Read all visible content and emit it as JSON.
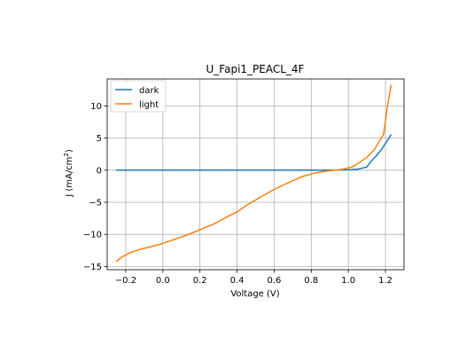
{
  "chart_data": {
    "type": "line",
    "title": "U_Fapi1_PEACL_4F",
    "xlabel": "Voltage (V)",
    "ylabel_main": "J (mA/cm",
    "ylabel_sup": "2",
    "ylabel_close": ")",
    "xlim": [
      -0.3,
      1.3
    ],
    "ylim": [
      -15.5,
      14.2
    ],
    "xticks": [
      -0.2,
      0.0,
      0.2,
      0.4,
      0.6,
      0.8,
      1.0,
      1.2
    ],
    "xtick_labels": [
      "−0.2",
      "0.0",
      "0.2",
      "0.4",
      "0.6",
      "0.8",
      "1.0",
      "1.2"
    ],
    "yticks": [
      -15,
      -10,
      -5,
      0,
      5,
      10
    ],
    "ytick_labels": [
      "−15",
      "−10",
      "−5",
      "0",
      "5",
      "10"
    ],
    "grid": true,
    "legend_position": "top-left",
    "series": [
      {
        "name": "dark",
        "color": "#1f77b4",
        "points": [
          [
            -0.25,
            0.0
          ],
          [
            0.0,
            0.0
          ],
          [
            0.3,
            0.0
          ],
          [
            0.6,
            0.0
          ],
          [
            0.9,
            0.0
          ],
          [
            1.0,
            0.05
          ],
          [
            1.05,
            0.15
          ],
          [
            1.1,
            0.5
          ],
          [
            1.12,
            1.3
          ],
          [
            1.15,
            2.2
          ],
          [
            1.18,
            3.3
          ],
          [
            1.21,
            4.6
          ],
          [
            1.23,
            5.5
          ]
        ]
      },
      {
        "name": "light",
        "color": "#ff7f0e",
        "points": [
          [
            -0.25,
            -14.2
          ],
          [
            -0.22,
            -13.5
          ],
          [
            -0.18,
            -12.9
          ],
          [
            -0.12,
            -12.3
          ],
          [
            -0.05,
            -11.8
          ],
          [
            0.0,
            -11.4
          ],
          [
            0.05,
            -10.9
          ],
          [
            0.12,
            -10.2
          ],
          [
            0.2,
            -9.3
          ],
          [
            0.28,
            -8.3
          ],
          [
            0.35,
            -7.2
          ],
          [
            0.4,
            -6.5
          ],
          [
            0.45,
            -5.5
          ],
          [
            0.52,
            -4.3
          ],
          [
            0.6,
            -3.0
          ],
          [
            0.68,
            -1.9
          ],
          [
            0.75,
            -1.0
          ],
          [
            0.82,
            -0.45
          ],
          [
            0.88,
            -0.15
          ],
          [
            0.93,
            0.0
          ],
          [
            0.97,
            0.15
          ],
          [
            1.02,
            0.5
          ],
          [
            1.06,
            1.2
          ],
          [
            1.1,
            2.0
          ],
          [
            1.14,
            3.2
          ],
          [
            1.17,
            4.6
          ],
          [
            1.19,
            5.6
          ],
          [
            1.21,
            9.8
          ],
          [
            1.23,
            13.2
          ]
        ]
      }
    ]
  }
}
